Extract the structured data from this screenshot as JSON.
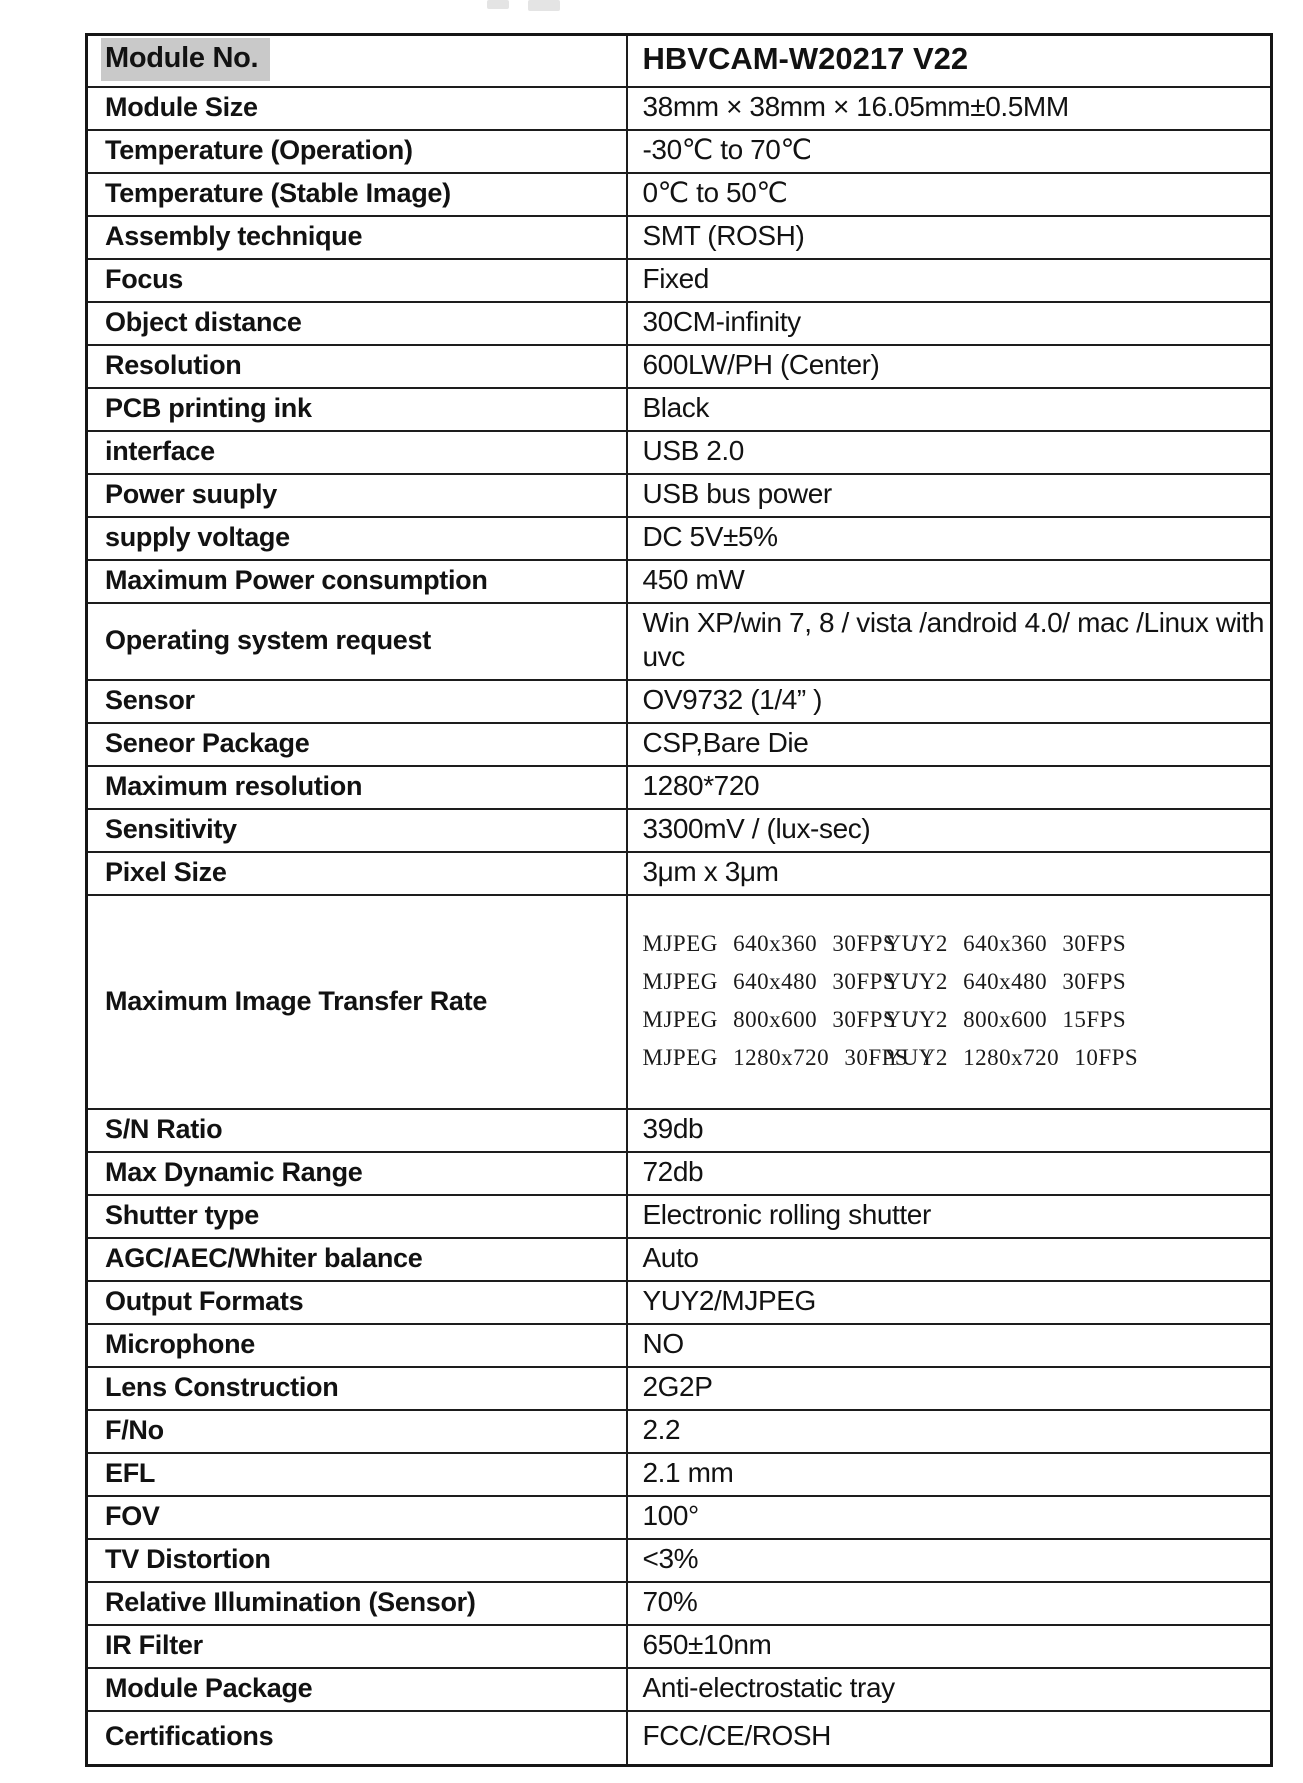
{
  "colors": {
    "header_label_highlight": "#c9c9c9",
    "text": "#121212",
    "border": "#1d1d1d",
    "background": "#ffffff"
  },
  "spec_table": {
    "columns": [
      "property",
      "value"
    ],
    "rows": [
      {
        "header": true,
        "label": "Module No.",
        "value": "HBVCAM-W20217 V22"
      },
      {
        "label": "Module Size",
        "value": "38mm × 38mm × 16.05mm±0.5MM"
      },
      {
        "label": "Temperature (Operation)",
        "value": "-30℃ to 70℃"
      },
      {
        "label": "Temperature (Stable Image)",
        "value": "0℃ to 50℃"
      },
      {
        "label": "Assembly technique",
        "value": "SMT (ROSH)"
      },
      {
        "label": "Focus",
        "value": "Fixed"
      },
      {
        "label": "Object distance",
        "value": "30CM-infinity"
      },
      {
        "label": "Resolution",
        "value": "600LW/PH (Center)"
      },
      {
        "label": "PCB printing ink",
        "value": "Black"
      },
      {
        "label": "interface",
        "value": "USB 2.0"
      },
      {
        "label": "Power suuply",
        "value": "USB bus power"
      },
      {
        "label": "supply voltage",
        "value": "DC 5V±5%"
      },
      {
        "label": "Maximum Power consumption",
        "value": "450 mW"
      },
      {
        "label": "Operating system request",
        "value": "Win XP/win 7, 8 / vista /android 4.0/ mac /Linux with uvc"
      },
      {
        "label": "Sensor",
        "value": "OV9732 (1/4” )"
      },
      {
        "label": "Seneor Package",
        "value": "CSP,Bare Die"
      },
      {
        "label": "Maximum resolution",
        "value": "1280*720"
      },
      {
        "label": "Sensitivity",
        "value": "3300mV / (lux-sec)"
      },
      {
        "label": "Pixel Size",
        "value": "3μm x 3μm"
      },
      {
        "label": "Maximum Image Transfer Rate",
        "value_lines": [
          {
            "left": "MJPEG 640x360 30FPS /",
            "right": "YUY2 640x360  30FPS"
          },
          {
            "left": "MJPEG 640x480 30FPS /",
            "right": "YUY2 640x480  30FPS"
          },
          {
            "left": "MJPEG 800x600 30FPS /",
            "right": "YUY2 800x600  15FPS"
          },
          {
            "left": "MJPEG 1280x720 30FPS /",
            "right": "YUY2 1280x720 10FPS"
          }
        ]
      },
      {
        "label": "S/N Ratio",
        "value": "39db"
      },
      {
        "label": "Max Dynamic Range",
        "value": "72db"
      },
      {
        "label": "Shutter type",
        "value": "Electronic rolling shutter"
      },
      {
        "label": "AGC/AEC/Whiter balance",
        "value": "Auto"
      },
      {
        "label": "Output Formats",
        "value": "YUY2/MJPEG"
      },
      {
        "label": "Microphone",
        "value": "NO"
      },
      {
        "label": "Lens Construction",
        "value": "2G2P"
      },
      {
        "label": "F/No",
        "value": "2.2"
      },
      {
        "label": "EFL",
        "value": "2.1 mm"
      },
      {
        "label": "FOV",
        "value": "100°"
      },
      {
        "label": "TV Distortion",
        "value": "<3%"
      },
      {
        "label": "Relative Illumination (Sensor)",
        "value": "70%"
      },
      {
        "label": "IR Filter",
        "value": "650±10nm"
      },
      {
        "label": "Module Package",
        "value": "Anti-electrostatic tray"
      },
      {
        "label": "Certifications",
        "value": "FCC/CE/ROSH"
      }
    ]
  }
}
